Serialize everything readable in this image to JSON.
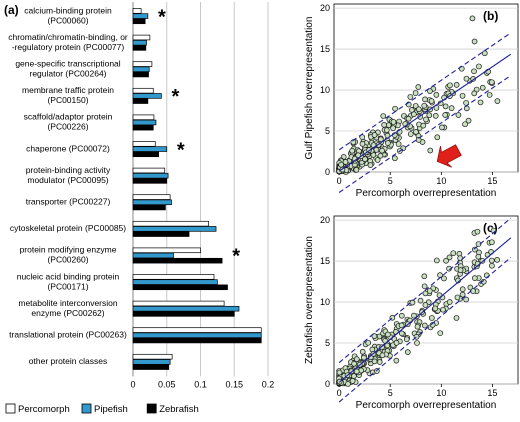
{
  "chart_data": [
    {
      "type": "bar",
      "orientation": "horizontal",
      "panel": "(a)",
      "categories": [
        "calcium-binding protein|(PC00060)",
        "chromatin/chromatin-binding, or|-regulatory protein (PC00077)",
        "gene-specific transcriptional|regulator (PC00264)",
        "membrane traffic protein|(PC00150)",
        "scaffold/adaptor protein|(PC00226)",
        "chaperone (PC00072)",
        "protein-binding activity|modulator (PC00095)",
        "transporter (PC00227)",
        "cytoskeletal protein (PC00085)",
        "protein modifying enzyme|(PC00260)",
        "nucleic acid binding protein|(PC00171)",
        "metabolite interconversion|enzyme (PC00262)",
        "translational protein (PC00263)",
        "other protein classes"
      ],
      "series": [
        {
          "name": "Percomorph",
          "color": "#ffffff",
          "values": [
            0.012,
            0.025,
            0.028,
            0.03,
            0.031,
            0.033,
            0.047,
            0.055,
            0.112,
            0.1,
            0.12,
            0.135,
            0.19,
            0.058
          ]
        },
        {
          "name": "Pipefish",
          "color": "#3399cc",
          "values": [
            0.022,
            0.02,
            0.024,
            0.042,
            0.034,
            0.05,
            0.052,
            0.057,
            0.123,
            0.06,
            0.125,
            0.157,
            0.19,
            0.055
          ]
        },
        {
          "name": "Zebrafish",
          "color": "#000000",
          "values": [
            0.018,
            0.019,
            0.023,
            0.022,
            0.03,
            0.038,
            0.05,
            0.048,
            0.083,
            0.132,
            0.14,
            0.15,
            0.19,
            0.053
          ]
        }
      ],
      "asterisks": [
        0,
        3,
        5,
        9
      ],
      "asterisk_label": "*",
      "xticks": [
        "0",
        "0.05",
        "0.1",
        "0.15",
        "0.2"
      ],
      "xlim": [
        0,
        0.2
      ],
      "grid": true,
      "legend": "bottom"
    },
    {
      "type": "scatter",
      "panel": "(b)",
      "xlabel": "Percomorph overrepresentation",
      "ylabel": "Gulf Pipefish overrepresentation",
      "xlim": [
        -0.5,
        17.5
      ],
      "ylim": [
        0,
        20.5
      ],
      "xticks": [
        0,
        5,
        10,
        15
      ],
      "yticks": [
        0,
        5,
        10,
        15,
        20
      ],
      "regression_slope": 0.85,
      "regression_intercept": 0.1,
      "interval_halfwidth": 2.6,
      "arrow_color": "#e0201b",
      "point_color": "#c8dfc0",
      "seed": 7
    },
    {
      "type": "scatter",
      "panel": "(c)",
      "xlabel": "Percomorph overrepresentation",
      "ylabel": "Zebrafish overrepresentation",
      "xlim": [
        -0.5,
        17.5
      ],
      "ylim": [
        0,
        20.5
      ],
      "xticks": [
        0,
        5,
        10,
        15
      ],
      "yticks": [
        0,
        5,
        10,
        15,
        20
      ],
      "regression_slope": 1.05,
      "regression_intercept": 0.2,
      "interval_halfwidth": 2.4,
      "point_color": "#c8dfc0",
      "seed": 13
    }
  ]
}
